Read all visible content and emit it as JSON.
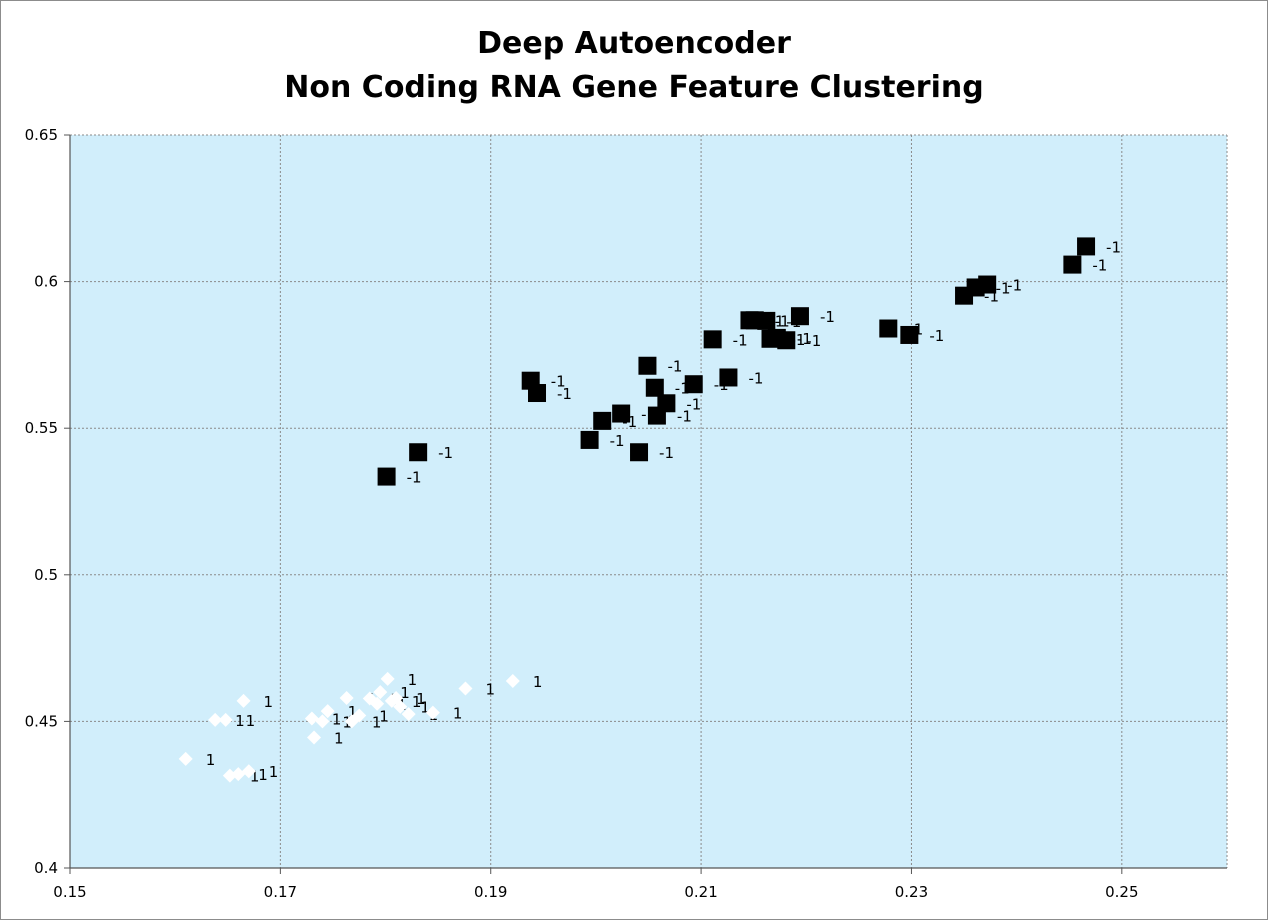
{
  "chart_data": {
    "type": "scatter",
    "title": [
      "Deep Autoencoder",
      "Non Coding RNA Gene Feature Clustering"
    ],
    "xlabel": "",
    "ylabel": "",
    "xlim": [
      0.15,
      0.26
    ],
    "ylim": [
      0.4,
      0.65
    ],
    "x_ticks": [
      "0.15",
      "0.17",
      "0.19",
      "0.21",
      "0.23",
      "0.25"
    ],
    "y_ticks": [
      "0.4",
      "0.45",
      "0.5",
      "0.55",
      "0.6",
      "0.65"
    ],
    "grid": true,
    "legend": "none",
    "plot_background": "#d1eefb",
    "series": [
      {
        "marker": "square",
        "color": "#000000",
        "point_label": "-1",
        "points": [
          [
            0.1801,
            0.5335
          ],
          [
            0.1831,
            0.5418
          ],
          [
            0.1938,
            0.5662
          ],
          [
            0.1944,
            0.562
          ],
          [
            0.1994,
            0.546
          ],
          [
            0.2006,
            0.5525
          ],
          [
            0.2024,
            0.555
          ],
          [
            0.2041,
            0.5418
          ],
          [
            0.2049,
            0.5713
          ],
          [
            0.2056,
            0.5638
          ],
          [
            0.2058,
            0.5543
          ],
          [
            0.2067,
            0.5585
          ],
          [
            0.2093,
            0.565
          ],
          [
            0.2111,
            0.5803
          ],
          [
            0.2126,
            0.5673
          ],
          [
            0.2146,
            0.5868
          ],
          [
            0.2151,
            0.5868
          ],
          [
            0.2162,
            0.5866
          ],
          [
            0.2166,
            0.5805
          ],
          [
            0.2172,
            0.5808
          ],
          [
            0.2181,
            0.58
          ],
          [
            0.2194,
            0.5882
          ],
          [
            0.2278,
            0.584
          ],
          [
            0.2298,
            0.5818
          ],
          [
            0.235,
            0.5952
          ],
          [
            0.2361,
            0.598
          ],
          [
            0.2372,
            0.599
          ],
          [
            0.2453,
            0.6058
          ],
          [
            0.2466,
            0.612
          ]
        ]
      },
      {
        "marker": "diamond",
        "color": "#ffffff",
        "point_label": "1",
        "points": [
          [
            0.161,
            0.4372
          ],
          [
            0.1638,
            0.4505
          ],
          [
            0.1648,
            0.4505
          ],
          [
            0.1652,
            0.4315
          ],
          [
            0.166,
            0.432
          ],
          [
            0.1665,
            0.457
          ],
          [
            0.167,
            0.433
          ],
          [
            0.173,
            0.451
          ],
          [
            0.1732,
            0.4445
          ],
          [
            0.174,
            0.45
          ],
          [
            0.1745,
            0.4535
          ],
          [
            0.1763,
            0.458
          ],
          [
            0.1768,
            0.45
          ],
          [
            0.1775,
            0.452
          ],
          [
            0.1785,
            0.4578
          ],
          [
            0.1792,
            0.456
          ],
          [
            0.1795,
            0.46
          ],
          [
            0.1802,
            0.4645
          ],
          [
            0.1806,
            0.457
          ],
          [
            0.181,
            0.458
          ],
          [
            0.1814,
            0.455
          ],
          [
            0.1822,
            0.4525
          ],
          [
            0.1845,
            0.453
          ],
          [
            0.1876,
            0.4612
          ],
          [
            0.1921,
            0.4638
          ]
        ]
      }
    ]
  }
}
